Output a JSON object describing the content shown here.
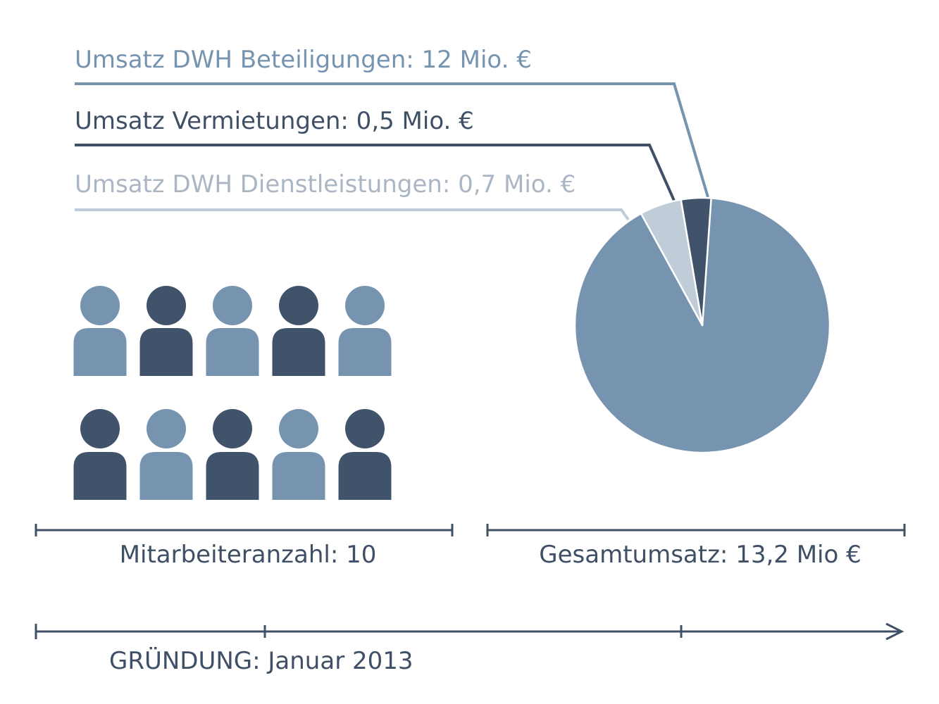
{
  "chart_data": [
    {
      "type": "pie",
      "title": "",
      "slices": [
        {
          "label": "Umsatz DWH Beteiligungen: 12 Mio. €",
          "value": 12,
          "color": "#7694b0"
        },
        {
          "label": "Umsatz DWH Dienstleistungen: 0,7 Mio. €",
          "value": 0.7,
          "color": "#c0ccd8"
        },
        {
          "label": "Umsatz Vermietungen: 0,5 Mio. €",
          "value": 0.5,
          "color": "#41536a"
        }
      ],
      "caption": "Gesamtumsatz: 13,2 Mio €"
    },
    {
      "type": "pictogram",
      "caption": "Mitarbeiteranzahl: 10",
      "count": 10,
      "icon": "person-icon",
      "colors": [
        "#7694b0",
        "#41536a",
        "#7694b0",
        "#41536a",
        "#7694b0",
        "#41536a",
        "#7694b0",
        "#41536a",
        "#7694b0",
        "#41536a"
      ]
    }
  ],
  "timeline": {
    "label": "GRÜNDUNG: Januar 2013",
    "icon": "arrow-right-icon"
  }
}
